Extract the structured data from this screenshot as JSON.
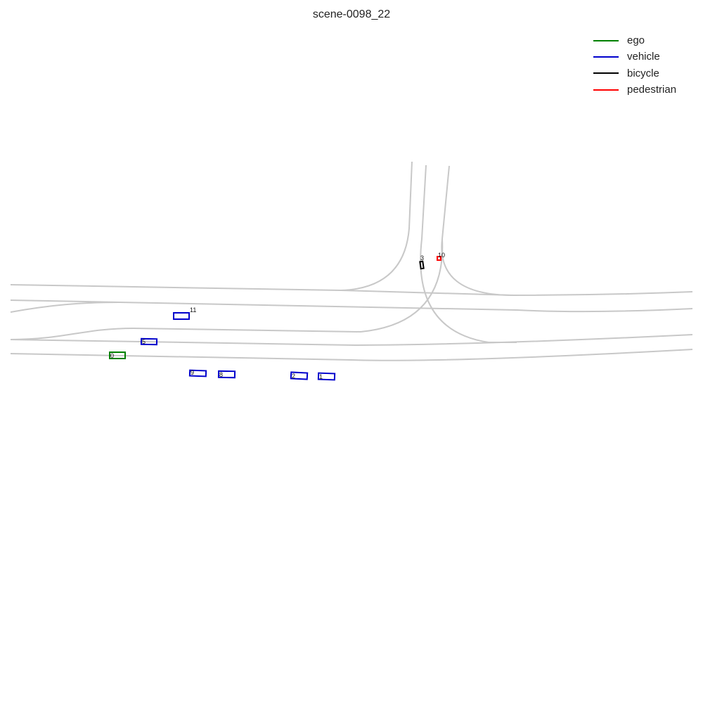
{
  "title": "scene-0098_22",
  "legend": [
    {
      "label": "ego",
      "color": "#008000"
    },
    {
      "label": "vehicle",
      "color": "#0000cc"
    },
    {
      "label": "bicycle",
      "color": "#000000"
    },
    {
      "label": "pedestrian",
      "color": "#ff0000"
    }
  ],
  "colors": {
    "lane": "#c8c8c8"
  },
  "agents": [
    {
      "id": "0",
      "type": "ego"
    },
    {
      "id": "5",
      "type": "vehicle"
    },
    {
      "id": "11",
      "type": "vehicle"
    },
    {
      "id": "9",
      "type": "vehicle"
    },
    {
      "id": "8",
      "type": "vehicle"
    },
    {
      "id": "2",
      "type": "vehicle"
    },
    {
      "id": "1",
      "type": "vehicle"
    },
    {
      "id": "3",
      "type": "bicycle"
    },
    {
      "id": "10",
      "type": "pedestrian"
    }
  ]
}
